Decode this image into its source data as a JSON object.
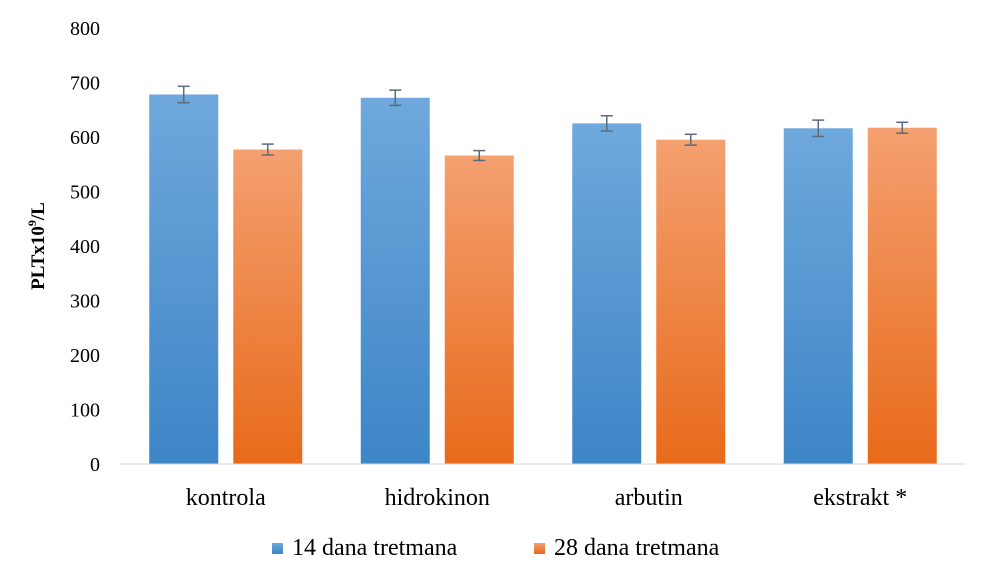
{
  "chart_data": {
    "type": "bar",
    "title": "",
    "xlabel": "",
    "ylabel": {
      "prefix": "PLTx10",
      "superscript": "9",
      "suffix": "/L"
    },
    "ylim": [
      0,
      800
    ],
    "yticks": [
      0,
      100,
      200,
      300,
      400,
      500,
      600,
      700,
      800
    ],
    "categories": [
      "kontrola",
      "hidrokinon",
      "arbutin",
      "ekstrakt *"
    ],
    "series": [
      {
        "name": "14 dana tretmana",
        "color_top": "#6fa8dc",
        "color_bottom": "#3d85c6",
        "values": [
          678,
          672,
          625,
          616
        ],
        "errors": [
          15,
          14,
          14,
          15
        ]
      },
      {
        "name": "28 dana tretmana",
        "color_top": "#f4a070",
        "color_bottom": "#e86a1a",
        "values": [
          577,
          566,
          595,
          617
        ],
        "errors": [
          10,
          9,
          10,
          10
        ]
      }
    ],
    "error_bar_color": "#5b6b7b",
    "grid": false,
    "legend_position": "bottom"
  }
}
